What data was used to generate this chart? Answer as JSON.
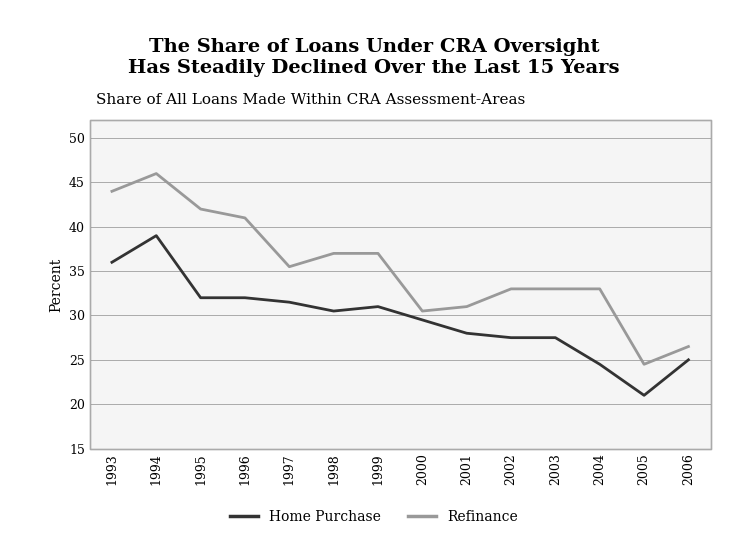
{
  "title": "The Share of Loans Under CRA Oversight\nHas Steadily Declined Over the Last 15 Years",
  "subtitle": "Share of All Loans Made Within CRA Assessment-Areas",
  "ylabel": "Percent",
  "years": [
    1993,
    1994,
    1995,
    1996,
    1997,
    1998,
    1999,
    2000,
    2001,
    2002,
    2003,
    2004,
    2005,
    2006
  ],
  "home_purchase": [
    36,
    39,
    32,
    32,
    31.5,
    30.5,
    31,
    29.5,
    28,
    27.5,
    27.5,
    24.5,
    21,
    25
  ],
  "refinance": [
    44,
    46,
    42,
    41,
    35.5,
    37,
    37,
    30.5,
    31,
    33,
    33,
    33,
    24.5,
    26.5
  ],
  "home_purchase_color": "#333333",
  "refinance_color": "#999999",
  "background_color": "#ffffff",
  "panel_background": "#f5f5f5",
  "ylim": [
    15,
    52
  ],
  "yticks": [
    15,
    20,
    25,
    30,
    35,
    40,
    45,
    50
  ],
  "line_width": 2.0,
  "title_fontsize": 14,
  "subtitle_fontsize": 11,
  "axis_label_fontsize": 10,
  "tick_fontsize": 9,
  "legend_fontsize": 10
}
